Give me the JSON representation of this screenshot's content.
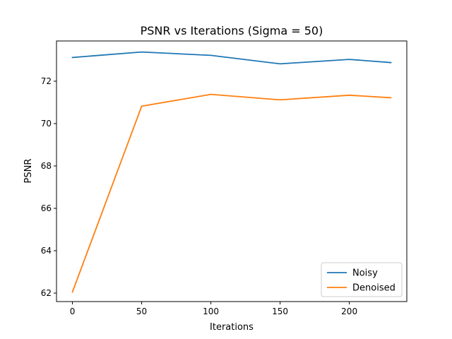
{
  "chart_data": {
    "type": "line",
    "title": "PSNR vs Iterations (Sigma = 50)",
    "xlabel": "Iterations",
    "ylabel": "PSNR",
    "xlim": [
      -11.5,
      241.5
    ],
    "ylim": [
      61.6,
      73.9
    ],
    "xticks": [
      0,
      50,
      100,
      150,
      200
    ],
    "yticks": [
      62,
      64,
      66,
      68,
      70,
      72
    ],
    "x": [
      0,
      50,
      100,
      150,
      200,
      230
    ],
    "series": [
      {
        "name": "Noisy",
        "color": "#1f77b4",
        "values": [
          73.12,
          73.38,
          73.22,
          72.82,
          73.03,
          72.88
        ]
      },
      {
        "name": "Denoised",
        "color": "#ff7f0e",
        "values": [
          62.05,
          70.82,
          71.38,
          71.12,
          71.34,
          71.22
        ]
      }
    ],
    "legend_position": "lower-right",
    "grid": false
  }
}
